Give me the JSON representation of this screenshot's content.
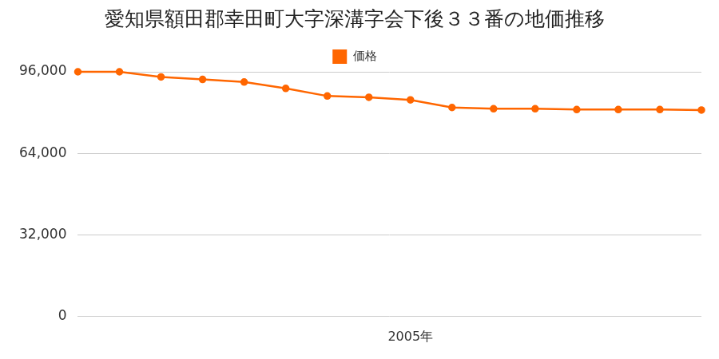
{
  "chart_data": {
    "type": "line",
    "title": "愛知県額田郡幸田町大字深溝字会下後３３番の地価推移",
    "categories": [
      null,
      null,
      null,
      null,
      null,
      null,
      null,
      null,
      "2005年",
      null,
      null,
      null,
      null,
      null,
      null,
      null
    ],
    "series": [
      {
        "name": "価格",
        "color": "#ff6600",
        "values": [
          96000,
          96000,
          94000,
          93000,
          92000,
          89500,
          86500,
          86000,
          85000,
          82000,
          81500,
          81500,
          81200,
          81200,
          81200,
          81000
        ]
      }
    ],
    "ylim": [
      0,
      96000
    ],
    "yticks": [
      0,
      {
        "value": 32000,
        "label": "32,000"
      },
      {
        "value": 64000,
        "label": "64,000"
      },
      {
        "value": 96000,
        "label": "96,000"
      }
    ],
    "grid": true,
    "legend": "top",
    "marker": "circle"
  }
}
